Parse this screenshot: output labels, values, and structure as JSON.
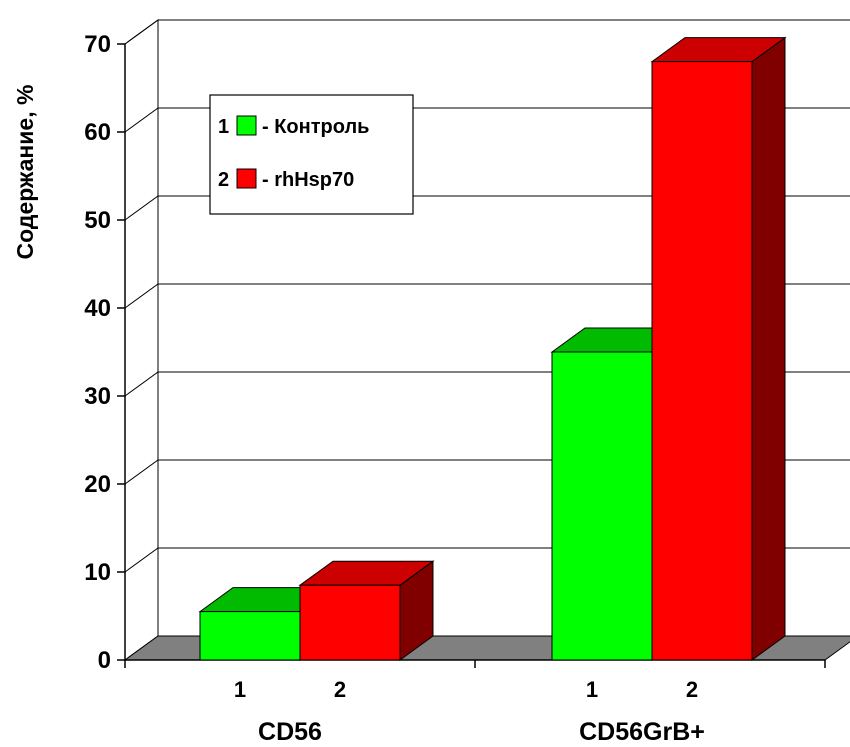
{
  "chart_data": {
    "type": "bar",
    "ylabel": "Содержание, %",
    "ylim": [
      0,
      70
    ],
    "yticks": [
      0,
      10,
      20,
      30,
      40,
      50,
      60,
      70
    ],
    "grid": true,
    "categories": [
      "CD56",
      "CD56GrB+"
    ],
    "category_sublabels": [
      "1",
      "2"
    ],
    "series": [
      {
        "name": "Контроль",
        "legend_number": "1",
        "legend_text": "- Контроль",
        "values": [
          5.5,
          35
        ]
      },
      {
        "name": "rhHsp70",
        "legend_number": "2",
        "legend_text": "- rhHsp70",
        "values": [
          8.5,
          68
        ]
      }
    ],
    "legend_position": "top-left",
    "colors": {
      "control_front": "#00ff00",
      "control_top": "#00bb00",
      "hsp_front": "#ff0000",
      "hsp_top": "#cc0000",
      "hsp_side": "#800000",
      "floor": "#808080"
    }
  }
}
